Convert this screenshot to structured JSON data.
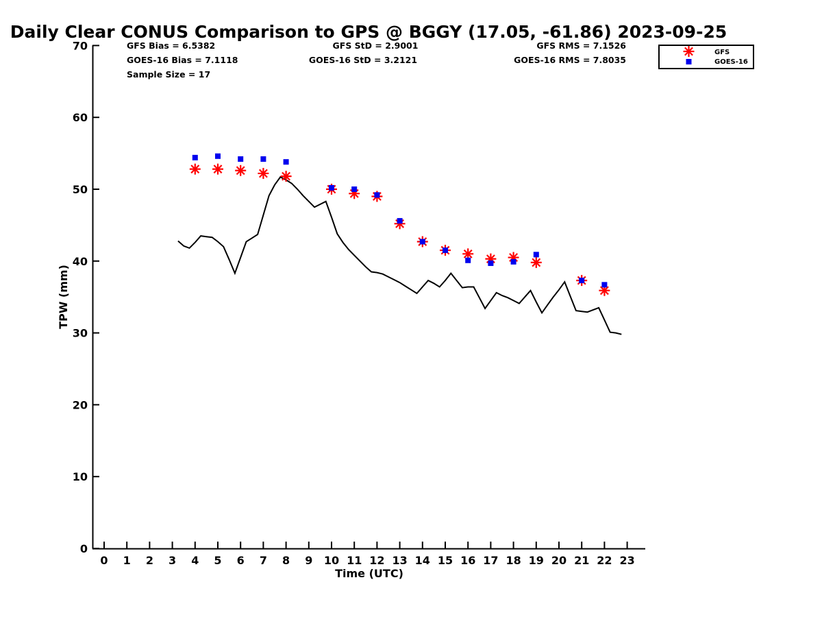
{
  "chart_data": {
    "type": "scatter",
    "title": "Daily Clear CONUS Comparison to GPS @ BGGY (17.05, -61.86) 2023-09-25",
    "xlabel": "Time (UTC)",
    "ylabel": "TPW (mm)",
    "xlim": [
      -0.5,
      23.7
    ],
    "ylim": [
      0,
      70
    ],
    "xticks": [
      "0",
      "1",
      "2",
      "3",
      "4",
      "5",
      "6",
      "7",
      "8",
      "9",
      "10",
      "11",
      "12",
      "13",
      "14",
      "15",
      "16",
      "17",
      "18",
      "19",
      "20",
      "21",
      "22",
      "23"
    ],
    "yticks": [
      "0",
      "10",
      "20",
      "30",
      "40",
      "50",
      "60",
      "70"
    ],
    "stats": {
      "gfs_bias": "GFS Bias = 6.5382",
      "goes_bias": "GOES-16 Bias = 7.1118",
      "sample_size": "Sample Size = 17",
      "gfs_std": "GFS StD = 2.9001",
      "goes_std": "GOES-16 StD = 3.2121",
      "gfs_rms": "GFS RMS = 7.1526",
      "goes_rms": "GOES-16 RMS = 7.8035"
    },
    "legend": [
      "GFS",
      "GOES-16"
    ],
    "legend_position": "top-right",
    "colors": {
      "gfs": "#ff0000",
      "goes": "#0000ee",
      "gps": "#000000"
    },
    "series": [
      {
        "name": "GPS",
        "style": "line",
        "x": [
          3.25,
          3.5,
          3.75,
          4.0,
          4.25,
          4.5,
          4.75,
          5.0,
          5.25,
          5.5,
          5.75,
          6.0,
          6.25,
          6.5,
          6.75,
          7.0,
          7.25,
          7.5,
          7.75,
          8.0,
          8.25,
          8.5,
          8.75,
          9.0,
          9.25,
          9.5,
          9.75,
          10.0,
          10.25,
          10.5,
          10.75,
          11.0,
          11.25,
          11.5,
          11.75,
          12.0,
          12.25,
          12.5,
          12.75,
          13.0,
          13.25,
          13.5,
          13.75,
          14.0,
          14.25,
          14.5,
          14.75,
          15.0,
          15.25,
          15.5,
          15.75,
          16.0,
          16.25,
          16.5,
          16.75,
          17.0,
          17.25,
          17.5,
          17.75,
          18.0,
          18.25,
          18.5,
          18.75,
          19.0,
          19.25,
          19.5,
          19.75,
          20.0,
          20.25,
          20.5,
          20.75,
          21.0,
          21.25,
          21.5,
          21.75,
          22.0,
          22.25,
          22.5,
          22.75
        ],
        "values": [
          42.8,
          42.1,
          41.8,
          42.6,
          43.5,
          43.4,
          43.3,
          42.7,
          42.0,
          40.2,
          38.3,
          40.5,
          42.7,
          43.2,
          43.7,
          46.4,
          49.1,
          50.6,
          51.7,
          51.3,
          50.8,
          50.0,
          49.1,
          48.3,
          47.5,
          47.9,
          48.3,
          46.1,
          43.8,
          42.6,
          41.6,
          40.8,
          40.0,
          39.2,
          38.5,
          38.4,
          38.2,
          37.8,
          37.4,
          37.0,
          36.5,
          36.0,
          35.5,
          36.4,
          37.3,
          36.9,
          36.4,
          37.3,
          38.3,
          37.3,
          36.3,
          36.4,
          36.4,
          34.9,
          33.4,
          34.5,
          35.6,
          35.2,
          34.9,
          34.5,
          34.1,
          35.0,
          35.9,
          34.3,
          32.8,
          33.9,
          35.0,
          36.0,
          37.1,
          35.1,
          33.1,
          33.0,
          32.9,
          33.2,
          33.5,
          31.8,
          30.1,
          30.0,
          29.8
        ]
      },
      {
        "name": "GFS",
        "style": "asterisk",
        "x": [
          4,
          5,
          6,
          7,
          8,
          10,
          11,
          12,
          13,
          14,
          15,
          16,
          17,
          18,
          19,
          21,
          22
        ],
        "values": [
          52.8,
          52.8,
          52.6,
          52.2,
          51.8,
          50.0,
          49.4,
          49.0,
          45.2,
          42.7,
          41.5,
          41.0,
          40.3,
          40.5,
          39.8,
          37.3,
          35.9
        ]
      },
      {
        "name": "GOES-16",
        "style": "square",
        "x": [
          4,
          5,
          6,
          7,
          8,
          10,
          11,
          12,
          13,
          14,
          15,
          16,
          17,
          18,
          19,
          21,
          22
        ],
        "values": [
          54.4,
          54.6,
          54.2,
          54.2,
          53.8,
          50.2,
          50.0,
          49.2,
          45.6,
          42.7,
          41.5,
          40.1,
          39.7,
          39.9,
          40.9,
          37.3,
          36.7
        ]
      }
    ]
  }
}
